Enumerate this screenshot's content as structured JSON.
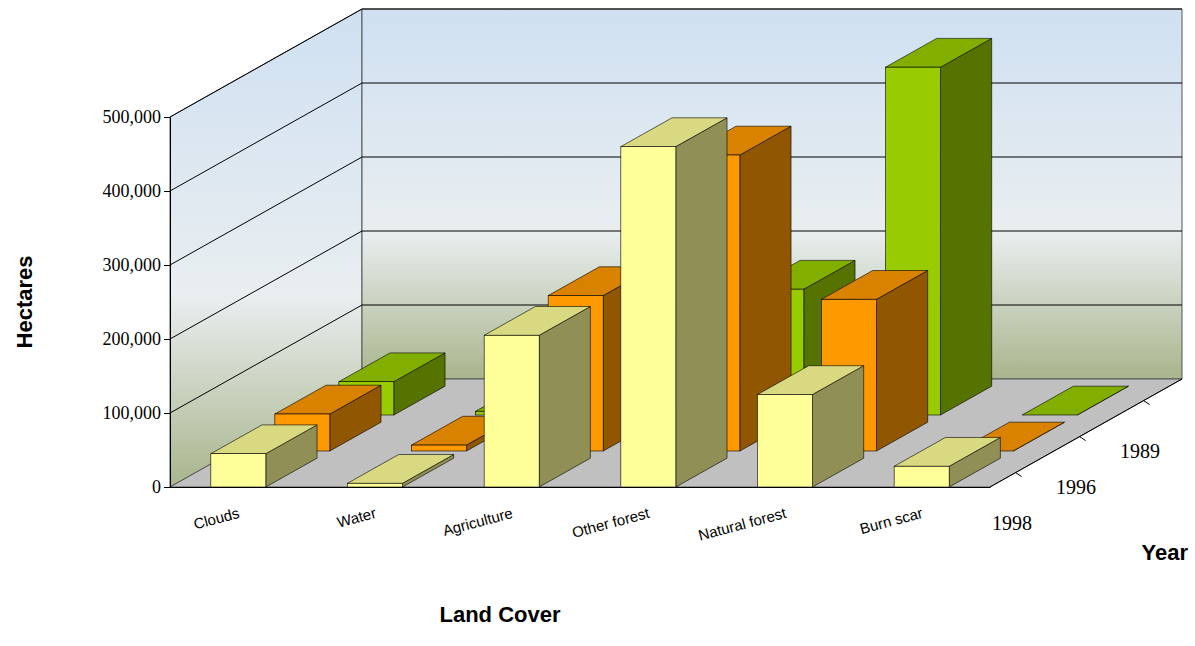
{
  "chart_data": {
    "type": "bar",
    "x_label": "Land Cover",
    "y_label": "Hectares",
    "z_label": "Year",
    "categories": [
      "Clouds",
      "Water",
      "Agriculture",
      "Other forest",
      "Natural forest",
      "Burn scar"
    ],
    "series": [
      {
        "name": "1998",
        "color": "#ffff99",
        "values": [
          45000,
          5000,
          205000,
          460000,
          125000,
          28000
        ]
      },
      {
        "name": "1996",
        "color": "#ff9900",
        "values": [
          50000,
          8000,
          210000,
          400000,
          205000,
          0
        ]
      },
      {
        "name": "1989",
        "color": "#99cc00",
        "values": [
          45000,
          5000,
          100000,
          170000,
          470000,
          0
        ]
      }
    ],
    "ylim": [
      0,
      500000
    ],
    "yticks": [
      0,
      {
        "value": 100000,
        "label": "100,000"
      },
      {
        "value": 200000,
        "label": "200,000"
      },
      {
        "value": 300000,
        "label": "300,000"
      },
      {
        "value": 400000,
        "label": "400,000"
      },
      {
        "value": 500000,
        "label": "500,000"
      }
    ],
    "grid": true
  }
}
